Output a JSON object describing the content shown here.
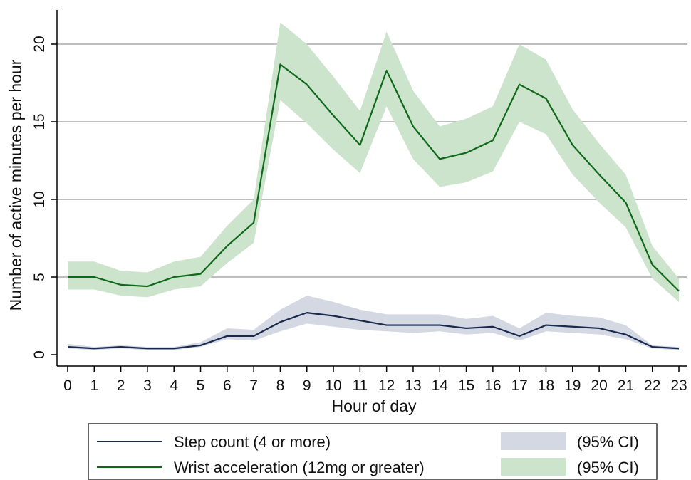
{
  "chart_data": {
    "type": "line",
    "xlabel": "Hour of day",
    "ylabel": "Number of active minutes per hour",
    "x": [
      0,
      1,
      2,
      3,
      4,
      5,
      6,
      7,
      8,
      9,
      10,
      11,
      12,
      13,
      14,
      15,
      16,
      17,
      18,
      19,
      20,
      21,
      22,
      23
    ],
    "xlim": [
      0,
      23
    ],
    "ylim": [
      0,
      20
    ],
    "yticks": [
      0,
      5,
      10,
      15,
      20
    ],
    "grid": "horizontal",
    "legend_position": "bottom",
    "series": [
      {
        "name": "Step count (4 or more)",
        "color": "#1a2a4f",
        "values": [
          0.5,
          0.4,
          0.5,
          0.4,
          0.4,
          0.6,
          1.2,
          1.2,
          2.1,
          2.7,
          2.5,
          2.2,
          1.9,
          1.9,
          1.9,
          1.7,
          1.8,
          1.2,
          1.9,
          1.8,
          1.7,
          1.3,
          0.5,
          0.4
        ],
        "ci_lower": [
          0.4,
          0.3,
          0.4,
          0.3,
          0.3,
          0.5,
          1.0,
          0.9,
          1.5,
          2.0,
          1.8,
          1.6,
          1.5,
          1.4,
          1.5,
          1.3,
          1.4,
          0.9,
          1.5,
          1.4,
          1.3,
          1.0,
          0.4,
          0.3
        ],
        "ci_upper": [
          0.7,
          0.5,
          0.6,
          0.5,
          0.5,
          0.8,
          1.7,
          1.6,
          2.9,
          3.8,
          3.4,
          2.9,
          2.6,
          2.6,
          2.6,
          2.3,
          2.5,
          1.7,
          2.7,
          2.5,
          2.4,
          1.9,
          0.6,
          0.5
        ],
        "ci_label": "(95% CI)",
        "ci_color": "#d4d8e2"
      },
      {
        "name": "Wrist acceleration (12mg or greater)",
        "color": "#0e6a1a",
        "values": [
          5.0,
          5.0,
          4.5,
          4.4,
          5.0,
          5.2,
          7.0,
          8.5,
          18.7,
          17.4,
          15.4,
          13.5,
          18.3,
          14.7,
          12.6,
          13.0,
          13.8,
          17.4,
          16.5,
          13.5,
          11.6,
          9.8,
          5.8,
          4.1
        ],
        "ci_lower": [
          4.2,
          4.2,
          3.8,
          3.7,
          4.2,
          4.4,
          5.9,
          7.2,
          16.4,
          14.9,
          13.2,
          11.7,
          16.0,
          12.6,
          10.8,
          11.1,
          11.8,
          15.0,
          14.2,
          11.6,
          9.8,
          8.2,
          4.9,
          3.4
        ],
        "ci_upper": [
          6.0,
          6.0,
          5.4,
          5.3,
          6.0,
          6.3,
          8.3,
          10.0,
          21.4,
          20.0,
          17.9,
          15.7,
          20.8,
          17.0,
          14.7,
          15.2,
          16.0,
          20.0,
          19.0,
          15.8,
          13.6,
          11.6,
          7.0,
          4.9
        ],
        "ci_label": "(95% CI)",
        "ci_color": "#cce3cc"
      }
    ]
  }
}
